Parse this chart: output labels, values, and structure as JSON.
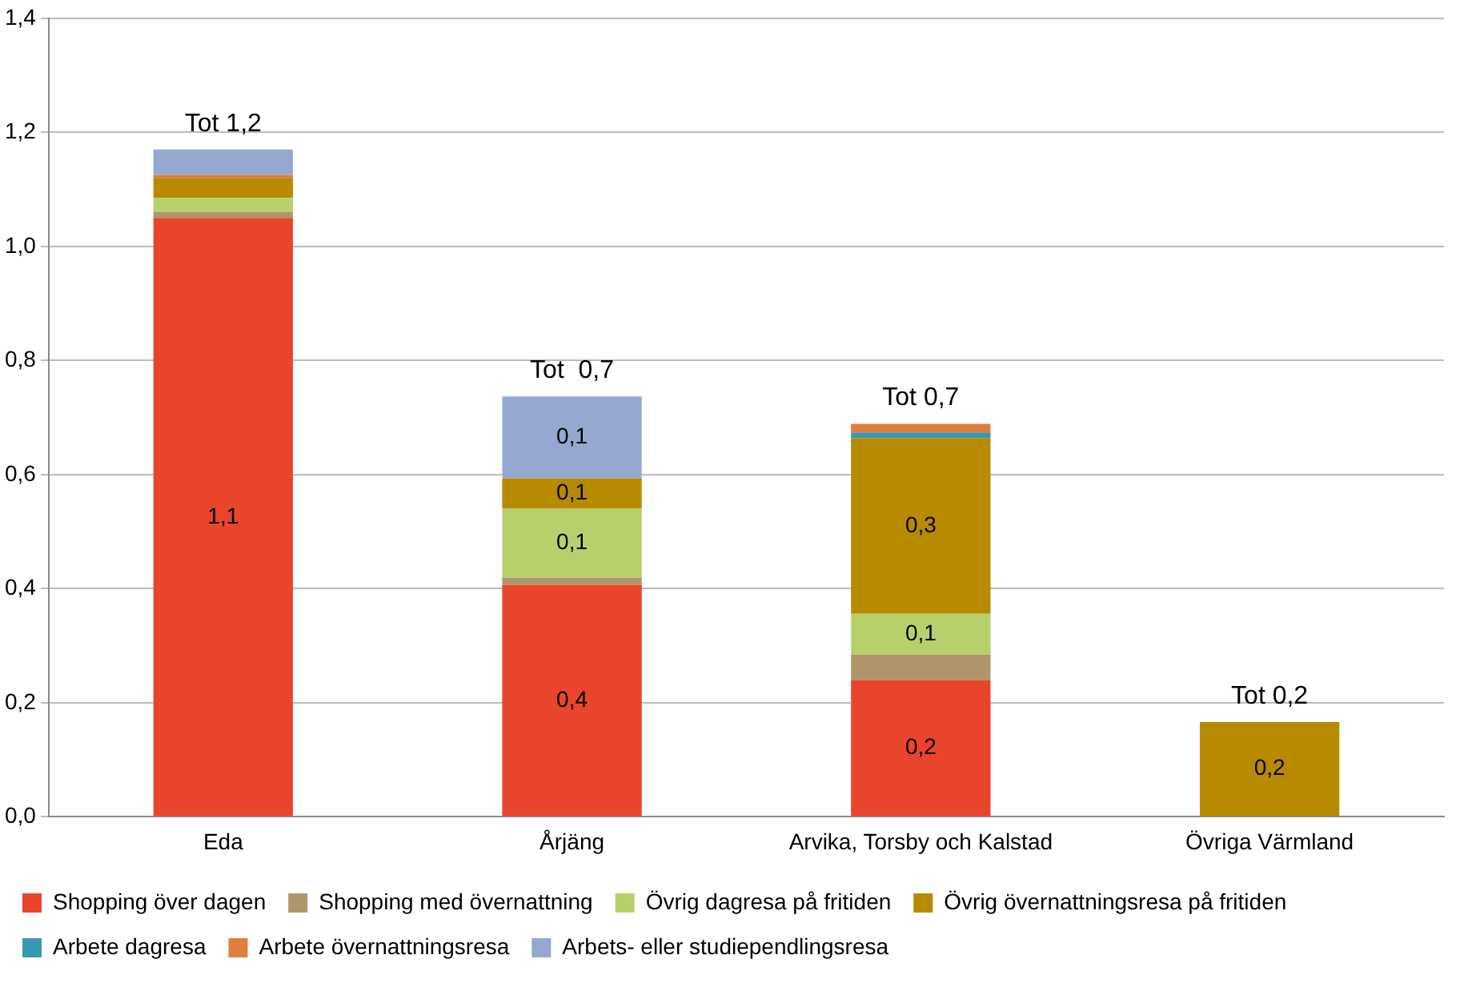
{
  "chart_data": {
    "type": "bar",
    "stacked": true,
    "categories": [
      "Eda",
      "Årjäng",
      "Arvika, Torsby och Kalstad",
      "Övriga Värmland"
    ],
    "series": [
      {
        "name": "Shopping över dagen",
        "color": "#e8452c",
        "values": [
          1.05,
          0.407,
          0.24,
          0
        ],
        "value_labels": [
          "1,1",
          "0,4",
          "0,2",
          null
        ]
      },
      {
        "name": "Shopping med övernattning",
        "color": "#b0956a",
        "values": [
          0.01,
          0.012,
          0.044,
          0
        ]
      },
      {
        "name": "Övrig dagresa på fritiden",
        "color": "#b8d06c",
        "values": [
          0.025,
          0.121,
          0.072,
          0
        ],
        "value_labels": [
          null,
          "0,1",
          "0,1",
          null
        ]
      },
      {
        "name": "Övrig övernattningsresa på fritiden",
        "color": "#b88a00",
        "values": [
          0.035,
          0.053,
          0.308,
          0.166
        ],
        "value_labels": [
          null,
          "0,1",
          "0,3",
          "0,2"
        ]
      },
      {
        "name": "Arbete dagresa",
        "color": "#3a98b0",
        "values": [
          0,
          0,
          0.01,
          0
        ]
      },
      {
        "name": "Arbete övernattningsresa",
        "color": "#e07e3c",
        "values": [
          0.005,
          0,
          0.015,
          0
        ]
      },
      {
        "name": "Arbets- eller studiependlingsresa",
        "color": "#94a8d0",
        "values": [
          0.045,
          0.144,
          0,
          0
        ],
        "value_labels": [
          null,
          "0,1",
          null,
          null
        ]
      }
    ],
    "totals": [
      "Tot 1,2",
      "Tot  0,7",
      "Tot 0,7",
      "Tot 0,2"
    ],
    "ylim": [
      0,
      1.4
    ],
    "yticks": [
      {
        "value": 0,
        "label": "0,0"
      },
      {
        "value": 0.2,
        "label": "0,2"
      },
      {
        "value": 0.4,
        "label": "0,4"
      },
      {
        "value": 0.6,
        "label": "0,6"
      },
      {
        "value": 0.8,
        "label": "0,8"
      },
      {
        "value": 1,
        "label": "1,0"
      },
      {
        "value": 1.2,
        "label": "1,2"
      },
      {
        "value": 1.4,
        "label": "1,4"
      }
    ],
    "grid": "y",
    "legend": "bottom"
  }
}
